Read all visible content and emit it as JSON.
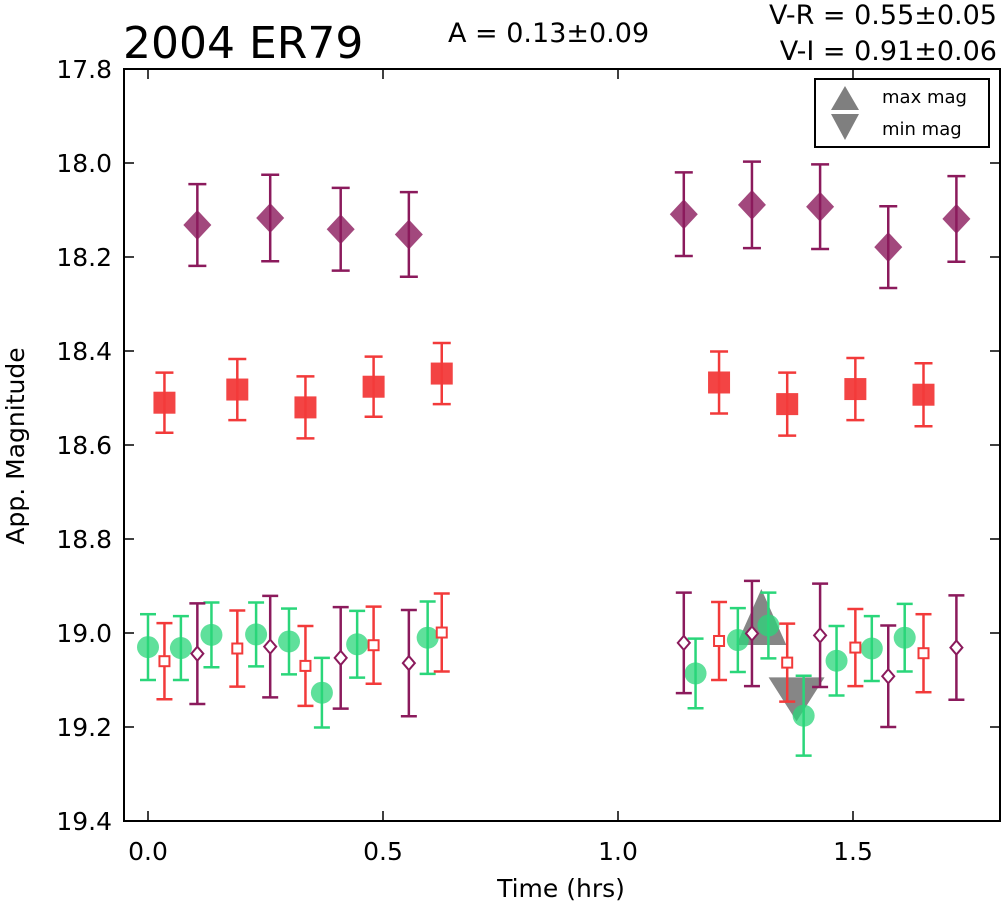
{
  "header": {
    "object_name": "2004 ER79",
    "amplitude": "A  = 0.13±0.09",
    "color_vr": "V-R = 0.55±0.05",
    "color_vi": "V-I  = 0.91±0.06"
  },
  "chart_data": {
    "type": "scatter",
    "xlabel": "Time (hrs)",
    "ylabel": "App. Magnitude",
    "xlim": [
      -0.05,
      1.8
    ],
    "ylim": [
      19.4,
      17.8
    ],
    "y_inverted": true,
    "grid": false,
    "xticks": [
      0.0,
      0.5,
      1.0,
      1.5
    ],
    "xtick_labels": [
      "0.0",
      "0.5",
      "1.0",
      "1.5"
    ],
    "yticks": [
      17.8,
      18.0,
      18.2,
      18.4,
      18.6,
      18.8,
      19.0,
      19.2,
      19.4
    ],
    "ytick_labels": [
      "17.8",
      "18.0",
      "18.2",
      "18.4",
      "18.6",
      "18.8",
      "19.0",
      "19.2",
      "19.4"
    ],
    "legend": {
      "placement": "top-right",
      "entries": [
        {
          "label": "max mag",
          "marker": "triangle-up",
          "color": "#7f7f7f"
        },
        {
          "label": "min mag",
          "marker": "triangle-down",
          "color": "#7f7f7f"
        }
      ]
    },
    "series": [
      {
        "marker": "diamond-filled",
        "color": "#8b1a5c",
        "offset": true,
        "points": [
          {
            "x": 0.105,
            "y": 18.132,
            "err": 0.087
          },
          {
            "x": 0.26,
            "y": 18.117,
            "err": 0.092
          },
          {
            "x": 0.41,
            "y": 18.141,
            "err": 0.088
          },
          {
            "x": 0.555,
            "y": 18.152,
            "err": 0.09
          },
          {
            "x": 1.14,
            "y": 18.109,
            "err": 0.089
          },
          {
            "x": 1.285,
            "y": 18.089,
            "err": 0.092
          },
          {
            "x": 1.43,
            "y": 18.093,
            "err": 0.09
          },
          {
            "x": 1.575,
            "y": 18.179,
            "err": 0.087
          },
          {
            "x": 1.72,
            "y": 18.119,
            "err": 0.091
          }
        ]
      },
      {
        "marker": "square-filled",
        "color": "#f23a3a",
        "offset": true,
        "points": [
          {
            "x": 0.035,
            "y": 18.51,
            "err": 0.064
          },
          {
            "x": 0.19,
            "y": 18.482,
            "err": 0.065
          },
          {
            "x": 0.335,
            "y": 18.52,
            "err": 0.066
          },
          {
            "x": 0.48,
            "y": 18.476,
            "err": 0.064
          },
          {
            "x": 0.625,
            "y": 18.448,
            "err": 0.065
          },
          {
            "x": 1.215,
            "y": 18.467,
            "err": 0.066
          },
          {
            "x": 1.36,
            "y": 18.513,
            "err": 0.067
          },
          {
            "x": 1.505,
            "y": 18.481,
            "err": 0.066
          },
          {
            "x": 1.65,
            "y": 18.493,
            "err": 0.067
          }
        ]
      },
      {
        "marker": "circle-filled",
        "color": "#2ad67a",
        "points": [
          {
            "x": 0.0,
            "y": 19.03,
            "err": 0.07
          },
          {
            "x": 0.07,
            "y": 19.032,
            "err": 0.068
          },
          {
            "x": 0.135,
            "y": 19.004,
            "err": 0.069
          },
          {
            "x": 0.23,
            "y": 19.003,
            "err": 0.068
          },
          {
            "x": 0.3,
            "y": 19.018,
            "err": 0.07
          },
          {
            "x": 0.37,
            "y": 19.127,
            "err": 0.074
          },
          {
            "x": 0.445,
            "y": 19.024,
            "err": 0.071
          },
          {
            "x": 0.595,
            "y": 19.01,
            "err": 0.077
          },
          {
            "x": 1.165,
            "y": 19.086,
            "err": 0.074
          },
          {
            "x": 1.255,
            "y": 19.015,
            "err": 0.068
          },
          {
            "x": 1.32,
            "y": 18.984,
            "err": 0.07
          },
          {
            "x": 1.395,
            "y": 19.176,
            "err": 0.085
          },
          {
            "x": 1.465,
            "y": 19.059,
            "err": 0.074
          },
          {
            "x": 1.54,
            "y": 19.033,
            "err": 0.069
          },
          {
            "x": 1.61,
            "y": 19.01,
            "err": 0.072
          }
        ]
      },
      {
        "marker": "square-open",
        "color": "#f23a3a",
        "points": [
          {
            "x": 0.035,
            "y": 19.06,
            "err": 0.081
          },
          {
            "x": 0.19,
            "y": 19.033,
            "err": 0.081
          },
          {
            "x": 0.335,
            "y": 19.07,
            "err": 0.085
          },
          {
            "x": 0.48,
            "y": 19.026,
            "err": 0.082
          },
          {
            "x": 0.625,
            "y": 18.999,
            "err": 0.083
          },
          {
            "x": 1.215,
            "y": 19.017,
            "err": 0.083
          },
          {
            "x": 1.36,
            "y": 19.063,
            "err": 0.083
          },
          {
            "x": 1.505,
            "y": 19.031,
            "err": 0.082
          },
          {
            "x": 1.65,
            "y": 19.043,
            "err": 0.083
          }
        ]
      },
      {
        "marker": "diamond-open",
        "color": "#8b1a5c",
        "points": [
          {
            "x": 0.105,
            "y": 19.044,
            "err": 0.107
          },
          {
            "x": 0.26,
            "y": 19.029,
            "err": 0.108
          },
          {
            "x": 0.41,
            "y": 19.053,
            "err": 0.108
          },
          {
            "x": 0.555,
            "y": 19.064,
            "err": 0.113
          },
          {
            "x": 1.14,
            "y": 19.021,
            "err": 0.107
          },
          {
            "x": 1.285,
            "y": 19.001,
            "err": 0.112
          },
          {
            "x": 1.43,
            "y": 19.005,
            "err": 0.11
          },
          {
            "x": 1.575,
            "y": 19.092,
            "err": 0.108
          },
          {
            "x": 1.72,
            "y": 19.031,
            "err": 0.111
          }
        ]
      }
    ],
    "extrema": [
      {
        "kind": "max mag",
        "x": 1.305,
        "y": 19.0,
        "color": "#7f7f7f"
      },
      {
        "kind": "min mag",
        "x": 1.38,
        "y": 19.12,
        "color": "#7f7f7f"
      }
    ]
  }
}
